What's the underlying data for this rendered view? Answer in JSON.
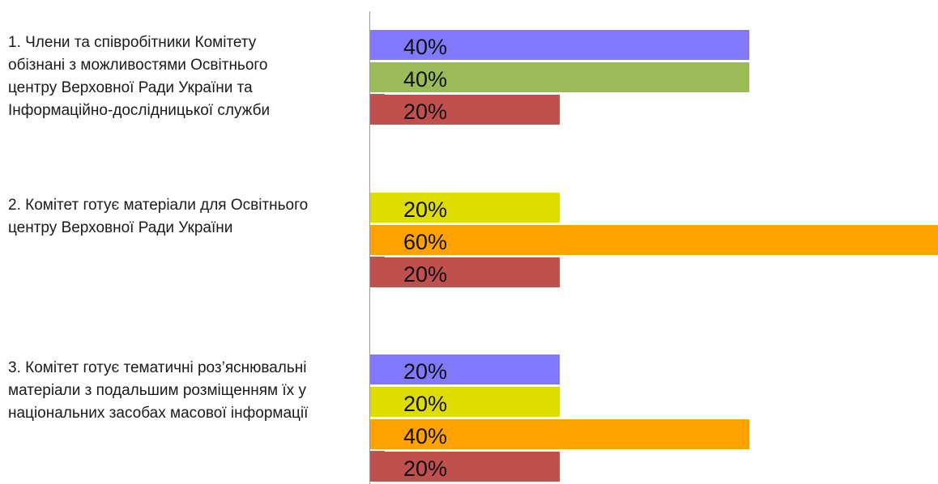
{
  "chart_data": {
    "type": "bar",
    "orientation": "horizontal",
    "value_unit": "%",
    "xlim": [
      0,
      60
    ],
    "grid": false,
    "legend": "none",
    "groups": [
      {
        "label_lines": [
          "1. Члени та співробітники Комітету",
          "обізнані з можливостями Освітнього",
          "центру Верховної Ради України та",
          "Інформаційно-дослідницької служби"
        ],
        "bars": [
          {
            "value": 40,
            "label": "40%",
            "color": "#8079fd"
          },
          {
            "value": 40,
            "label": "40%",
            "color": "#9bbb59"
          },
          {
            "value": 20,
            "label": "20%",
            "color": "#c0504d"
          }
        ]
      },
      {
        "label_lines": [
          "2. Комітет готує матеріали для Освітнього",
          "центру Верховної Ради України"
        ],
        "bars": [
          {
            "value": 20,
            "label": "20%",
            "color": "#dddd00"
          },
          {
            "value": 60,
            "label": "60%",
            "color": "#ffa200"
          },
          {
            "value": 20,
            "label": "20%",
            "color": "#c0504d"
          }
        ]
      },
      {
        "label_lines": [
          "3. Комітет готує тематичні роз’яснювальні",
          "матеріали з подальшим розміщенням їх у",
          "національних засобах масової інформації"
        ],
        "bars": [
          {
            "value": 20,
            "label": "20%",
            "color": "#8079fd"
          },
          {
            "value": 20,
            "label": "20%",
            "color": "#dddd00"
          },
          {
            "value": 40,
            "label": "40%",
            "color": "#ffa200"
          },
          {
            "value": 20,
            "label": "20%",
            "color": "#c0504d"
          }
        ]
      }
    ]
  }
}
